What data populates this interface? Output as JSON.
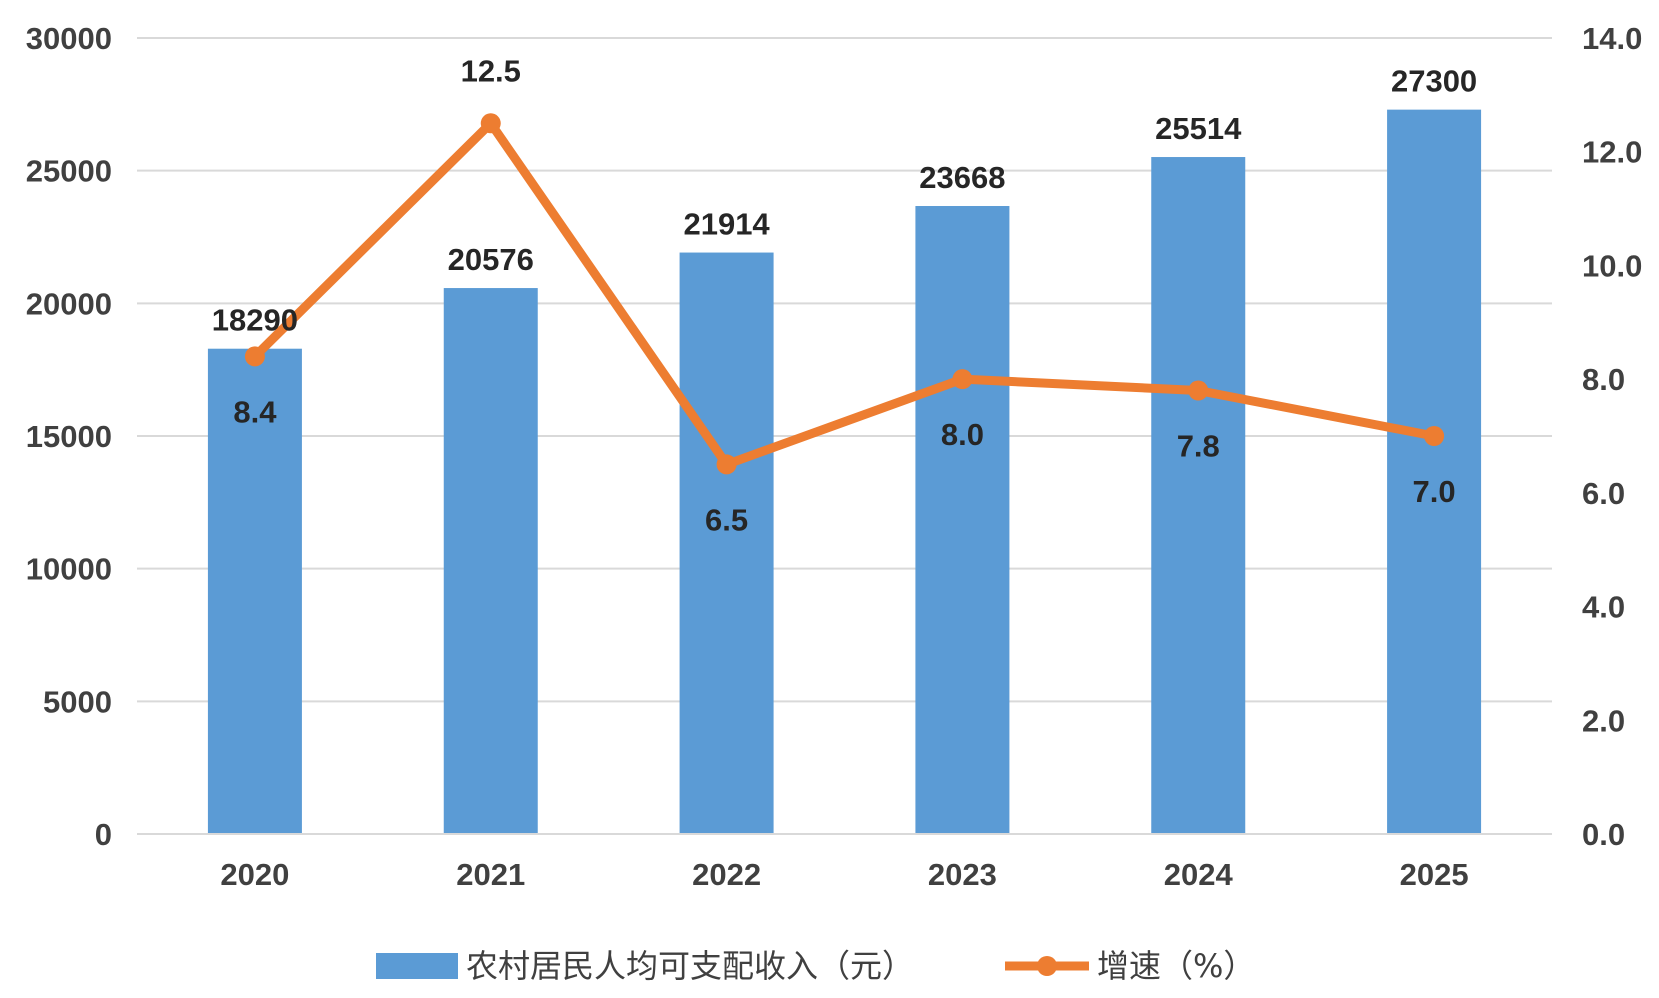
{
  "chart_data": {
    "type": "bar",
    "categories": [
      "2020",
      "2021",
      "2022",
      "2023",
      "2024",
      "2025"
    ],
    "series": [
      {
        "name": "农村居民人均可支配收入（元）",
        "type": "bar",
        "axis": "left",
        "values": [
          18290,
          20576,
          21914,
          23668,
          25514,
          27300
        ],
        "data_labels": [
          "18290",
          "20576",
          "21914",
          "23668",
          "25514",
          "27300"
        ],
        "color": "#5b9bd5"
      },
      {
        "name": "增速（%）",
        "type": "line",
        "axis": "right",
        "values": [
          8.4,
          12.5,
          6.5,
          8.0,
          7.8,
          7.0
        ],
        "data_labels": [
          "8.4",
          "12.5",
          "6.5",
          "8.0",
          "7.8",
          "7.0"
        ],
        "color": "#ed7d31"
      }
    ],
    "y_left": {
      "min": 0,
      "max": 30000,
      "ticks": [
        "0",
        "5000",
        "10000",
        "15000",
        "20000",
        "25000",
        "30000"
      ]
    },
    "y_right": {
      "min": 0,
      "max": 14,
      "ticks": [
        "0.0",
        "2.0",
        "4.0",
        "6.0",
        "8.0",
        "10.0",
        "12.0",
        "14.0"
      ]
    },
    "grid": true,
    "legend_position": "bottom",
    "title": "",
    "xlabel": "",
    "ylabel": ""
  }
}
